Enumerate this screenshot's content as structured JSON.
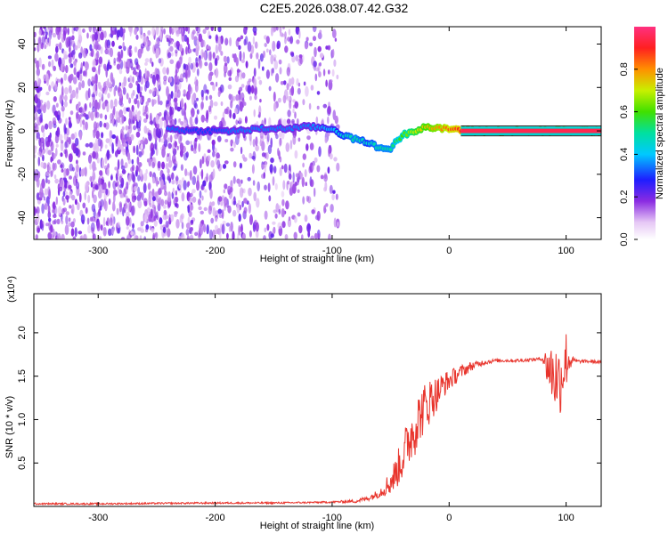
{
  "figure_title": "C2E5.2026.038.07.42.G32",
  "chart_data": [
    {
      "type": "heatmap",
      "name": "spectrogram",
      "xlabel": "Height of straight line (km)",
      "ylabel": "Frequency (Hz)",
      "xlim": [
        -355,
        130
      ],
      "ylim": [
        -50,
        48
      ],
      "xticks": [
        -300,
        -200,
        -100,
        0,
        100
      ],
      "yticks": [
        -40,
        -20,
        0,
        20,
        40
      ],
      "colorbar": {
        "label": "Normalized spectral amplitude",
        "range": [
          0,
          1
        ],
        "ticks": [
          0.0,
          0.2,
          0.4,
          0.6,
          0.8
        ],
        "tick_labels": [
          "0.0",
          "0.2",
          "0.4",
          "0.6",
          "0.8"
        ]
      },
      "tone_track": [
        {
          "x": -240,
          "y": 1,
          "amp": 0.35
        },
        {
          "x": -220,
          "y": 0,
          "amp": 0.3
        },
        {
          "x": -200,
          "y": 0,
          "amp": 0.3
        },
        {
          "x": -180,
          "y": 0,
          "amp": 0.35
        },
        {
          "x": -160,
          "y": 1,
          "amp": 0.35
        },
        {
          "x": -140,
          "y": 1,
          "amp": 0.35
        },
        {
          "x": -120,
          "y": 2,
          "amp": 0.35
        },
        {
          "x": -100,
          "y": 1,
          "amp": 0.4
        },
        {
          "x": -90,
          "y": -2,
          "amp": 0.45
        },
        {
          "x": -80,
          "y": -4,
          "amp": 0.5
        },
        {
          "x": -70,
          "y": -5,
          "amp": 0.45
        },
        {
          "x": -60,
          "y": -8,
          "amp": 0.5
        },
        {
          "x": -50,
          "y": -8,
          "amp": 0.5
        },
        {
          "x": -40,
          "y": -2,
          "amp": 0.6
        },
        {
          "x": -30,
          "y": 0,
          "amp": 0.7
        },
        {
          "x": -20,
          "y": 2,
          "amp": 0.75
        },
        {
          "x": -10,
          "y": 1,
          "amp": 0.8
        },
        {
          "x": 0,
          "y": 1,
          "amp": 0.85
        },
        {
          "x": 20,
          "y": 0,
          "amp": 0.95
        },
        {
          "x": 60,
          "y": 0,
          "amp": 0.95
        },
        {
          "x": 90,
          "y": 0,
          "amp": 0.9
        },
        {
          "x": 130,
          "y": 0,
          "amp": 0.95
        }
      ]
    },
    {
      "type": "line",
      "name": "snr",
      "xlabel": "Height of straight line (km)",
      "ylabel": "SNR (10 * v/v)",
      "y_multiplier": "(x10⁴)",
      "xlim": [
        -355,
        130
      ],
      "ylim": [
        0,
        2.45
      ],
      "xticks": [
        -300,
        -200,
        -100,
        0,
        100
      ],
      "yticks": [
        0.5,
        1.0,
        1.5,
        2.0
      ],
      "ytick_labels": [
        "0.5",
        "1.0",
        "1.5",
        "2.0"
      ],
      "color": "#e8342c",
      "x": [
        -355,
        -300,
        -250,
        -200,
        -150,
        -120,
        -100,
        -80,
        -70,
        -60,
        -50,
        -45,
        -40,
        -35,
        -30,
        -25,
        -20,
        -15,
        -10,
        -5,
        0,
        10,
        20,
        30,
        40,
        60,
        80,
        85,
        90,
        95,
        100,
        105,
        110,
        120,
        130
      ],
      "y": [
        0.03,
        0.03,
        0.035,
        0.04,
        0.04,
        0.045,
        0.05,
        0.06,
        0.09,
        0.15,
        0.28,
        0.4,
        0.55,
        0.75,
        0.9,
        1.05,
        1.15,
        1.25,
        1.3,
        1.4,
        1.45,
        1.55,
        1.62,
        1.66,
        1.68,
        1.68,
        1.7,
        1.6,
        1.5,
        1.45,
        1.7,
        1.68,
        1.67,
        1.67,
        1.66
      ],
      "noise": [
        0.01,
        0.01,
        0.01,
        0.01,
        0.01,
        0.01,
        0.01,
        0.02,
        0.03,
        0.05,
        0.15,
        0.2,
        0.25,
        0.3,
        0.35,
        0.3,
        0.3,
        0.25,
        0.2,
        0.15,
        0.12,
        0.08,
        0.05,
        0.03,
        0.02,
        0.02,
        0.02,
        0.3,
        0.4,
        0.4,
        0.35,
        0.05,
        0.02,
        0.02,
        0.02
      ]
    }
  ]
}
